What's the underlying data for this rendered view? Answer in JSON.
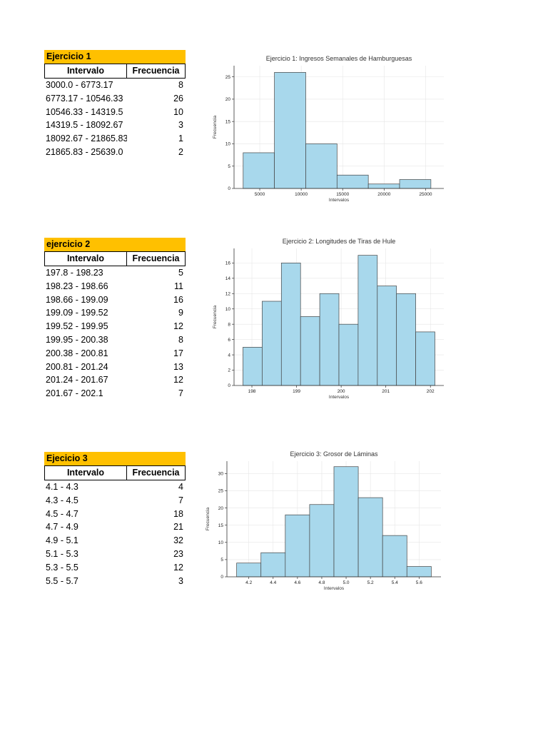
{
  "tables": [
    {
      "title": "Ejercicio 1",
      "header": [
        "Intervalo",
        "Frecuencia"
      ],
      "rows": [
        [
          "3000.0 - 6773.17",
          "8"
        ],
        [
          "6773.17 - 10546.33",
          "26"
        ],
        [
          "10546.33 - 14319.5",
          "10"
        ],
        [
          "14319.5 - 18092.67",
          "3"
        ],
        [
          "18092.67 - 21865.83",
          "1"
        ],
        [
          "21865.83 - 25639.0",
          "2"
        ]
      ]
    },
    {
      "title": "ejercicio 2",
      "header": [
        "Intervalo",
        "Frecuencia"
      ],
      "rows": [
        [
          "197.8 - 198.23",
          "5"
        ],
        [
          "198.23 - 198.66",
          "11"
        ],
        [
          "198.66 - 199.09",
          "16"
        ],
        [
          "199.09 - 199.52",
          "9"
        ],
        [
          "199.52 - 199.95",
          "12"
        ],
        [
          "199.95 - 200.38",
          "8"
        ],
        [
          "200.38 - 200.81",
          "17"
        ],
        [
          "200.81 - 201.24",
          "13"
        ],
        [
          "201.24 - 201.67",
          "12"
        ],
        [
          "201.67 - 202.1",
          "7"
        ]
      ]
    },
    {
      "title": "Ejecicio  3",
      "header": [
        "Intervalo",
        "Frecuencia"
      ],
      "rows": [
        [
          "4.1 - 4.3",
          "4"
        ],
        [
          "4.3 - 4.5",
          "7"
        ],
        [
          "4.5 - 4.7",
          "18"
        ],
        [
          "4.7 - 4.9",
          "21"
        ],
        [
          "4.9 - 5.1",
          "32"
        ],
        [
          "5.1 - 5.3",
          "23"
        ],
        [
          "5.3 - 5.5",
          "12"
        ],
        [
          "5.5 - 5.7",
          "3"
        ]
      ]
    }
  ],
  "chart_data": [
    {
      "type": "bar",
      "title": "Ejercicio 1: Ingresos Semanales de Hamburguesas",
      "xlabel": "Intervalos",
      "ylabel": "Frecuencia",
      "bin_edges": [
        3000.0,
        6773.17,
        10546.33,
        14319.5,
        18092.67,
        21865.83,
        25639.0
      ],
      "values": [
        8,
        26,
        10,
        3,
        1,
        2
      ],
      "xlim": [
        1900,
        27200
      ],
      "ylim": [
        0,
        27.5
      ],
      "xticks": [
        5000,
        10000,
        15000,
        20000,
        25000
      ],
      "yticks": [
        0,
        5,
        10,
        15,
        20,
        25
      ],
      "grid": true,
      "bar_color": "#a8d8ec",
      "edge_color": "#444444"
    },
    {
      "type": "bar",
      "title": "Ejercicio 2: Longitudes de Tiras de Hule",
      "xlabel": "Intervalos",
      "ylabel": "Frecuencia",
      "bin_edges": [
        197.8,
        198.23,
        198.66,
        199.09,
        199.52,
        199.95,
        200.38,
        200.81,
        201.24,
        201.67,
        202.1
      ],
      "values": [
        5,
        11,
        16,
        9,
        12,
        8,
        17,
        13,
        12,
        7
      ],
      "xlim": [
        197.6,
        202.3
      ],
      "ylim": [
        0,
        17.9
      ],
      "xticks": [
        198,
        199,
        200,
        201,
        202
      ],
      "yticks": [
        0,
        2,
        4,
        6,
        8,
        10,
        12,
        14,
        16
      ],
      "grid": true,
      "bar_color": "#a8d8ec",
      "edge_color": "#444444"
    },
    {
      "type": "bar",
      "title": "Ejercicio 3: Grosor de Láminas",
      "xlabel": "Intervalos",
      "ylabel": "Frecuencia",
      "bin_edges": [
        4.1,
        4.3,
        4.5,
        4.7,
        4.9,
        5.1,
        5.3,
        5.5,
        5.7
      ],
      "values": [
        4,
        7,
        18,
        21,
        32,
        23,
        12,
        3
      ],
      "xlim": [
        4.02,
        5.78
      ],
      "ylim": [
        0,
        33.6
      ],
      "xticks": [
        4.2,
        4.4,
        4.6,
        4.8,
        5.0,
        5.2,
        5.4,
        5.6
      ],
      "yticks": [
        0,
        5,
        10,
        15,
        20,
        25,
        30
      ],
      "grid": true,
      "bar_color": "#a8d8ec",
      "edge_color": "#444444"
    }
  ]
}
